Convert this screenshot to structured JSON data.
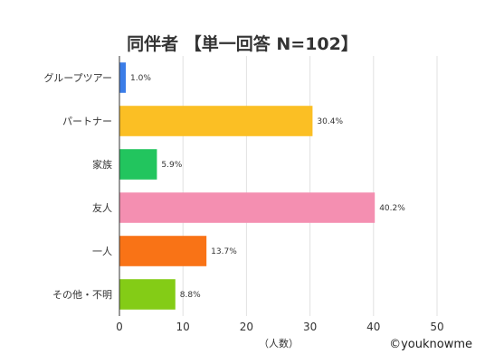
{
  "chart_data": {
    "type": "bar",
    "orientation": "horizontal",
    "title": "同伴者 【単一回答 N=102】",
    "categories": [
      "グループツアー",
      "パートナー",
      "家族",
      "友人",
      "一人",
      "その他・不明"
    ],
    "values": [
      1.0,
      30.4,
      5.9,
      40.2,
      13.7,
      8.8
    ],
    "value_labels": [
      "1.0%",
      "30.4%",
      "5.9%",
      "40.2%",
      "13.7%",
      "8.8%"
    ],
    "colors": [
      "#3b7de8",
      "#fbbf24",
      "#22c55e",
      "#f48fb1",
      "#f97316",
      "#84cc16"
    ],
    "xlabel": "（人数）",
    "ylabel": "",
    "xlim": [
      0,
      50
    ],
    "xticks": [
      0,
      10,
      20,
      30,
      40,
      50
    ],
    "grid": true
  },
  "credit": "©youknowme"
}
